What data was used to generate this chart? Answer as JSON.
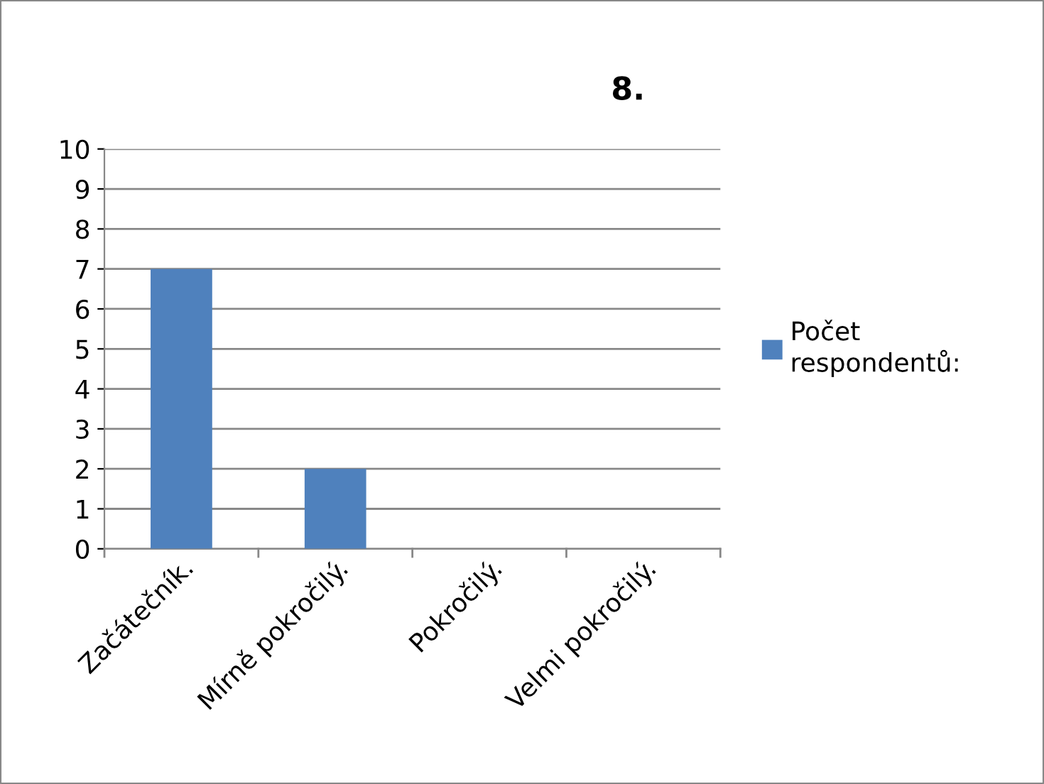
{
  "chart_data": {
    "type": "bar",
    "title": "8.",
    "categories": [
      "Začátečník.",
      "Mírně pokročilý.",
      "Pokročilý.",
      "Velmi pokročilý."
    ],
    "series": [
      {
        "name": "Počet\nrespondentů:",
        "color": "#4f81bd",
        "values": [
          7,
          2,
          0,
          0
        ]
      }
    ],
    "ylim": [
      0,
      10
    ],
    "yticks": [
      0,
      1,
      2,
      3,
      4,
      5,
      6,
      7,
      8,
      9,
      10
    ],
    "grid": "y",
    "legend": "right"
  }
}
